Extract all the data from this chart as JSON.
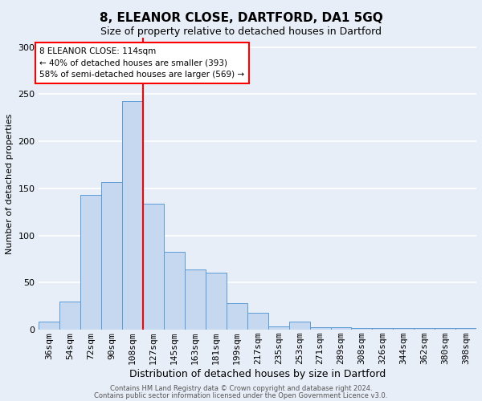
{
  "title": "8, ELEANOR CLOSE, DARTFORD, DA1 5GQ",
  "subtitle": "Size of property relative to detached houses in Dartford",
  "xlabel": "Distribution of detached houses by size in Dartford",
  "ylabel": "Number of detached properties",
  "bar_labels": [
    "36sqm",
    "54sqm",
    "72sqm",
    "90sqm",
    "108sqm",
    "127sqm",
    "145sqm",
    "163sqm",
    "181sqm",
    "199sqm",
    "217sqm",
    "235sqm",
    "253sqm",
    "271sqm",
    "289sqm",
    "308sqm",
    "326sqm",
    "344sqm",
    "362sqm",
    "380sqm",
    "398sqm"
  ],
  "bar_values": [
    9,
    30,
    143,
    157,
    243,
    134,
    83,
    64,
    61,
    28,
    18,
    4,
    9,
    3,
    3,
    2,
    2,
    2,
    2,
    2,
    2
  ],
  "bin_edges": [
    27,
    45,
    63,
    81,
    99,
    117,
    135,
    153,
    171,
    189,
    207,
    225,
    243,
    261,
    279,
    297,
    315,
    333,
    351,
    369,
    387,
    405
  ],
  "bar_color": "#c5d8f0",
  "bar_edge_color": "#5b9bd5",
  "red_line_x": 117,
  "annotation_text_line1": "8 ELEANOR CLOSE: 114sqm",
  "annotation_text_line2": "← 40% of detached houses are smaller (393)",
  "annotation_text_line3": "58% of semi-detached houses are larger (569) →",
  "ylim": [
    0,
    310
  ],
  "yticks": [
    0,
    50,
    100,
    150,
    200,
    250,
    300
  ],
  "footer1": "Contains HM Land Registry data © Crown copyright and database right 2024.",
  "footer2": "Contains public sector information licensed under the Open Government Licence v3.0.",
  "bg_color": "#e8eef8",
  "plot_bg_color": "#e8eef8",
  "grid_color": "#ffffff",
  "title_fontsize": 11,
  "subtitle_fontsize": 9,
  "ylabel_fontsize": 8,
  "xlabel_fontsize": 9,
  "tick_fontsize": 8,
  "annotation_fontsize": 7.5,
  "footer_fontsize": 6
}
